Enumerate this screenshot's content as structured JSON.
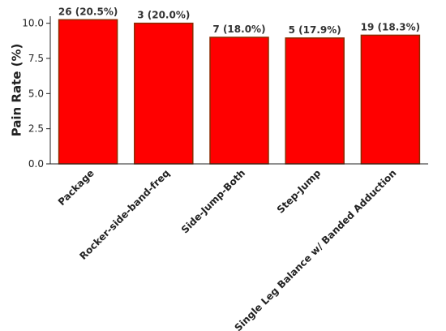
{
  "chart_data": {
    "type": "bar",
    "categories": [
      "Package",
      "Rocker-side-band-freq",
      "Side-Jump-Both",
      "Step-Jump",
      "Single Leg Balance w/ Banded Adduction"
    ],
    "values": [
      10.25,
      10.0,
      9.0,
      8.95,
      9.15
    ],
    "data_labels": [
      "26 (20.5%)",
      "3 (20.0%)",
      "7 (18.0%)",
      "5 (17.9%)",
      "19 (18.3%)"
    ],
    "ylabel": "Pain Rate (%)",
    "ylim": [
      0,
      10.5
    ],
    "yticks": [
      0.0,
      2.5,
      5.0,
      7.5,
      10.0
    ],
    "ytick_labels": [
      "0.0",
      "2.5",
      "5.0",
      "7.5",
      "10.0"
    ],
    "grid": false,
    "bar_color": "#ff0000",
    "bar_edge_color": "#8b2a00"
  }
}
